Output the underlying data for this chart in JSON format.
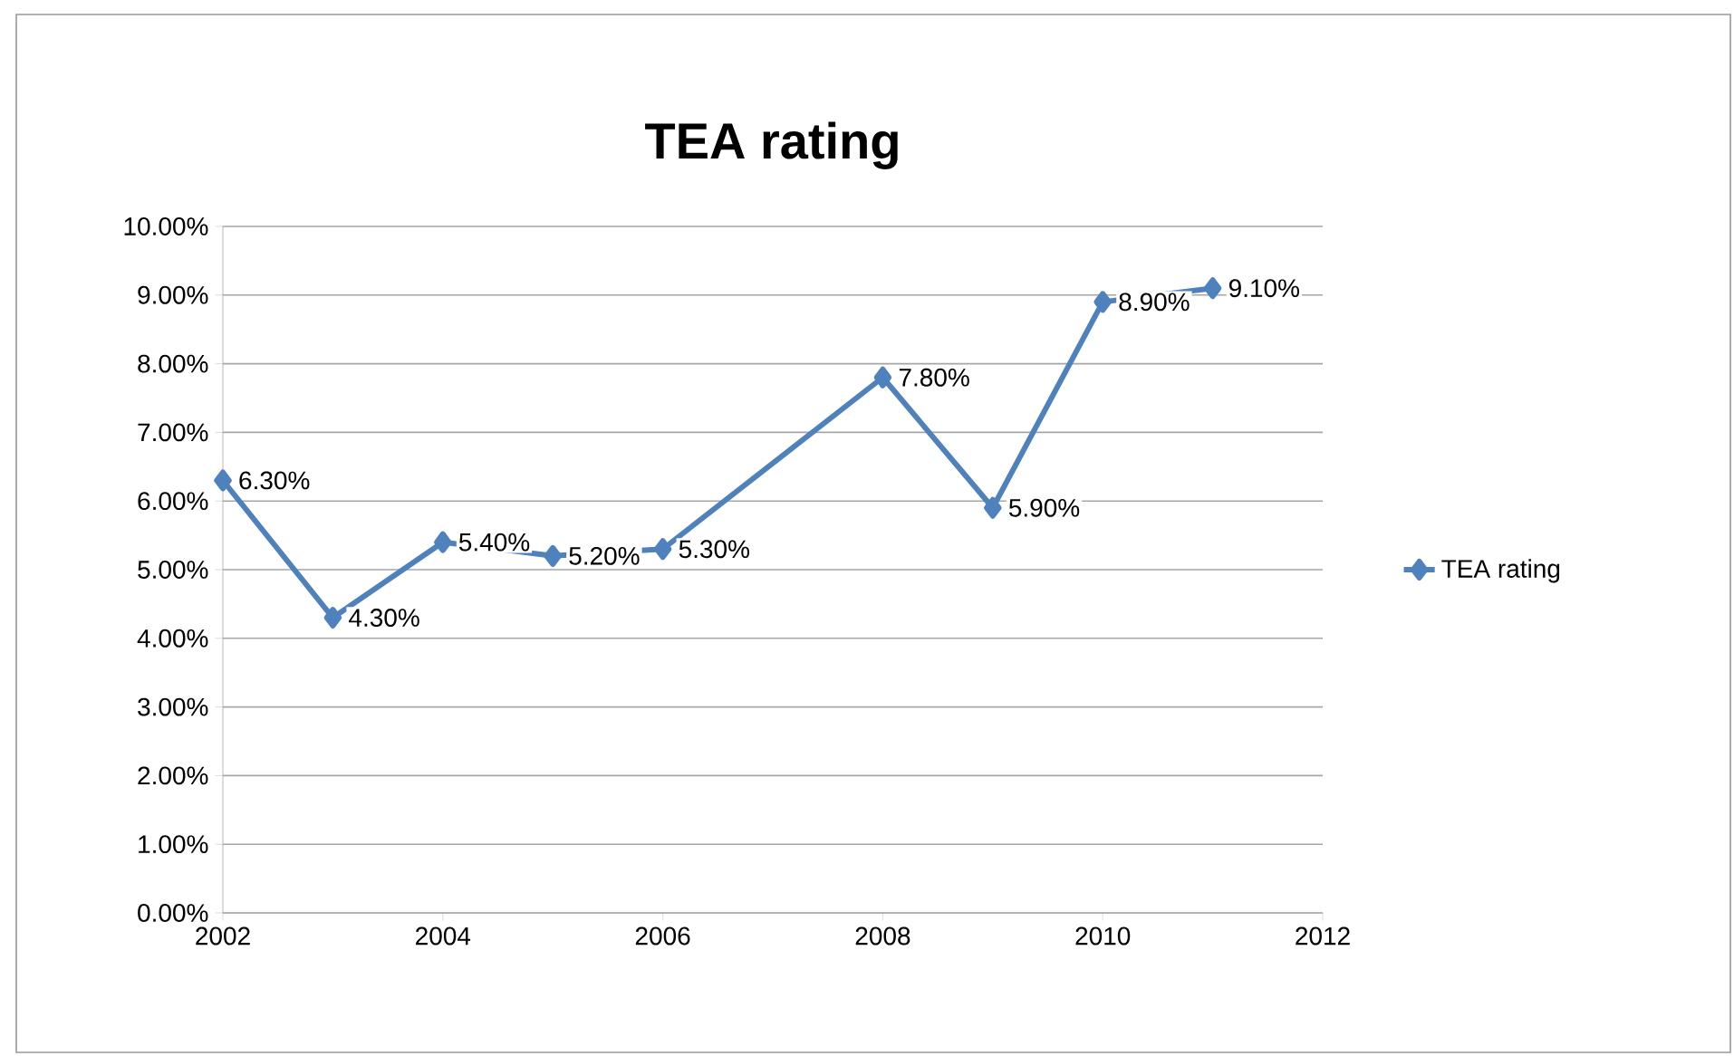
{
  "chart_data": {
    "type": "line",
    "title": "TEA rating",
    "x": [
      2002,
      2003,
      2004,
      2005,
      2006,
      2008,
      2009,
      2010,
      2011
    ],
    "series": [
      {
        "name": "TEA rating",
        "color": "#4f81bd",
        "values": [
          6.3,
          4.3,
          5.4,
          5.2,
          5.3,
          7.8,
          5.9,
          8.9,
          9.1
        ],
        "value_labels": [
          "6.30%",
          "4.30%",
          "5.40%",
          "5.20%",
          "5.30%",
          "7.80%",
          "5.90%",
          "8.90%",
          "9.10%"
        ]
      }
    ],
    "xlim": [
      2002,
      2012
    ],
    "xticks": [
      2002,
      2004,
      2006,
      2008,
      2010,
      2012
    ],
    "ylim": [
      0,
      10
    ],
    "yticks": [
      {
        "value": 0,
        "label": "0.00%"
      },
      {
        "value": 1,
        "label": "1.00%"
      },
      {
        "value": 2,
        "label": "2.00%"
      },
      {
        "value": 3,
        "label": "3.00%"
      },
      {
        "value": 4,
        "label": "4.00%"
      },
      {
        "value": 5,
        "label": "5.00%"
      },
      {
        "value": 6,
        "label": "6.00%"
      },
      {
        "value": 7,
        "label": "7.00%"
      },
      {
        "value": 8,
        "label": "8.00%"
      },
      {
        "value": 9,
        "label": "9.00%"
      },
      {
        "value": 10,
        "label": "10.00%"
      }
    ],
    "grid": "y",
    "legend": "right",
    "marker": "diamond",
    "line_style": "solid"
  }
}
